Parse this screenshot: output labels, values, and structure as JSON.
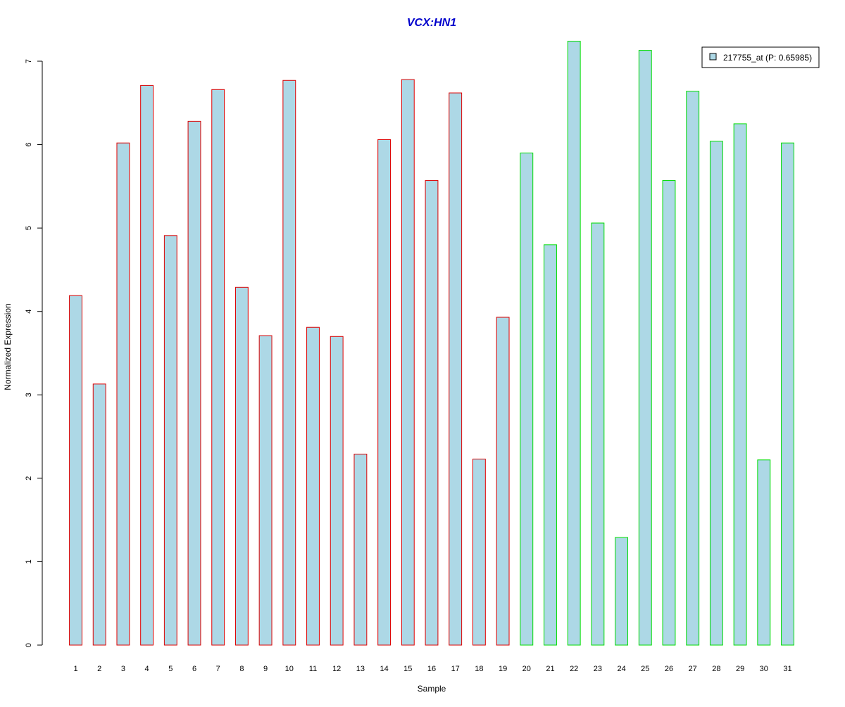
{
  "chart_data": {
    "type": "bar",
    "title": "VCX:HN1",
    "xlabel": "Sample",
    "ylabel": "Normalized Expression",
    "ylim": [
      0,
      7
    ],
    "yticks": [
      0,
      1,
      2,
      3,
      4,
      5,
      6,
      7
    ],
    "categories": [
      "1",
      "2",
      "3",
      "4",
      "5",
      "6",
      "7",
      "8",
      "9",
      "10",
      "11",
      "12",
      "13",
      "14",
      "15",
      "16",
      "17",
      "18",
      "19",
      "20",
      "21",
      "22",
      "23",
      "24",
      "25",
      "26",
      "27",
      "28",
      "29",
      "30",
      "31"
    ],
    "series": [
      {
        "name": "217755_at (P: 0.65985)",
        "values": [
          4.19,
          3.13,
          6.02,
          6.71,
          4.91,
          6.28,
          6.66,
          4.29,
          3.71,
          6.77,
          3.81,
          3.7,
          2.29,
          6.06,
          6.78,
          5.57,
          6.62,
          2.23,
          3.93,
          5.9,
          4.8,
          7.24,
          5.06,
          1.29,
          7.13,
          5.57,
          6.64,
          6.04,
          6.25,
          2.22,
          6.02
        ]
      }
    ],
    "groups": [
      {
        "samples": [
          1,
          19
        ],
        "border_color": "#dd0000"
      },
      {
        "samples": [
          20,
          31
        ],
        "border_color": "#00dd00"
      }
    ],
    "fill_color": "#add8e6",
    "title_color": "#0000cc",
    "legend": {
      "label": "217755_at (P: 0.65985)",
      "placement": "top-right"
    },
    "grid": false
  }
}
